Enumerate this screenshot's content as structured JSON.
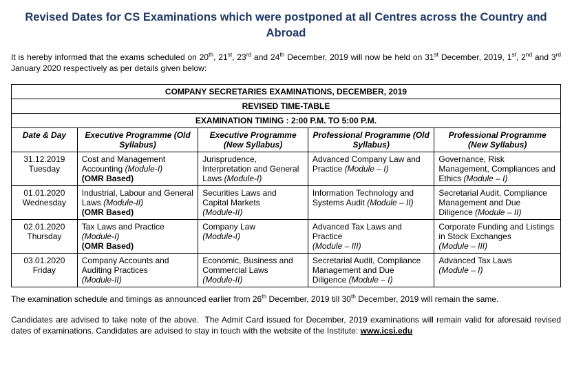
{
  "title": "Revised Dates for CS Examinations which were postponed at all Centres across the Country and Abroad",
  "intro_html": "It is hereby informed that the exams scheduled on 20<sup>th</sup>, 21<sup>st</sup>, 23<sup>rd</sup> and 24<sup>th</sup> December, 2019 will now be held on 31<sup>st</sup> December, 2019, 1<sup>st</sup>, 2<sup>nd</sup> and 3<sup>rd</sup> January 2020 respectively as per details given below:",
  "table": {
    "header1": "COMPANY SECRETARIES EXAMINATIONS, DECEMBER, 2019",
    "header2": "REVISED TIME-TABLE",
    "header3": "EXAMINATION TIMING : 2:00 P.M. TO 5:00 P.M.",
    "columns": {
      "date": "Date & Day",
      "exec_old": "Executive Programme (Old Syllabus)",
      "exec_new": "Executive Programme (New Syllabus)",
      "prof_old": "Professional Programme (Old Syllabus)",
      "prof_new": "Professional Programme (New Syllabus)"
    },
    "rows": [
      {
        "date": "31.12.2019",
        "day": "Tuesday",
        "exec_old_html": "Cost and Management Accounting <span class=\"module-inline\">(Module-I)</span><br><b>(OMR Based)</b>",
        "exec_new_html": "Jurisprudence, Interpretation and General Laws <span class=\"module-inline\">(Module-I)</span>",
        "prof_old_html": "Advanced Company Law and Practice <span class=\"module-inline\">(Module – I)</span>",
        "prof_new_html": "Governance, Risk Management, Compliances and Ethics <span class=\"module-inline\">(Module – I)</span>"
      },
      {
        "date": "01.01.2020",
        "day": "Wednesday",
        "exec_old_html": "Industrial, Labour and General Laws <span class=\"module-inline\">(Module-II)</span><br><b>(OMR Based)</b>",
        "exec_new_html": "Securities Laws and Capital Markets<br><span class=\"module-inline\">(Module-II)</span>",
        "prof_old_html": "Information Technology and Systems Audit <span class=\"module-inline\">(Module – II)</span>",
        "prof_new_html": "Secretarial Audit, Compliance Management and Due Diligence <span class=\"module-inline\">(Module – II)</span>"
      },
      {
        "date": "02.01.2020",
        "day": "Thursday",
        "exec_old_html": "Tax Laws and Practice<br><span class=\"module-inline\">(Module-I)</span><br><b>(OMR Based)</b>",
        "exec_new_html": "Company Law<br><span class=\"module-inline\">(Module-I)</span>",
        "prof_old_html": "Advanced Tax Laws and Practice<br><span class=\"module-inline\">(Module – III)</span>",
        "prof_new_html": "Corporate Funding and Listings in Stock Exchanges<br><span class=\"module-inline\">(Module – III)</span>"
      },
      {
        "date": "03.01.2020",
        "day": "Friday",
        "exec_old_html": "Company Accounts and Auditing Practices<br><span class=\"module-inline\">(Module-II)</span>",
        "exec_new_html": "Economic, Business and Commercial Laws<br><span class=\"module-inline\">(Module-II)</span>",
        "prof_old_html": "Secretarial Audit, Compliance Management and Due Diligence <span class=\"module-inline\">(Module – I)</span>",
        "prof_new_html": "Advanced Tax Laws<br><span class=\"module-inline\">(Module – I)</span>"
      }
    ]
  },
  "outro1_html": "The examination schedule and timings as announced earlier from 26<sup>th</sup> December, 2019 till 30<sup>th</sup> December, 2019 will remain the same.",
  "outro2_html": "Candidates are advised to take note of the above.&nbsp; The Admit Card issued for December, 2019 examinations will remain valid for aforesaid revised dates of examinations. Candidates are advised to stay in touch with the website of the Institute: <span class=\"link\">www.icsi.edu</span>",
  "colors": {
    "title_color": "#1f3864",
    "border_color": "#000000",
    "background": "#ffffff"
  },
  "fontsizes": {
    "title_pt": 13,
    "body_pt": 9,
    "table_pt": 9
  }
}
